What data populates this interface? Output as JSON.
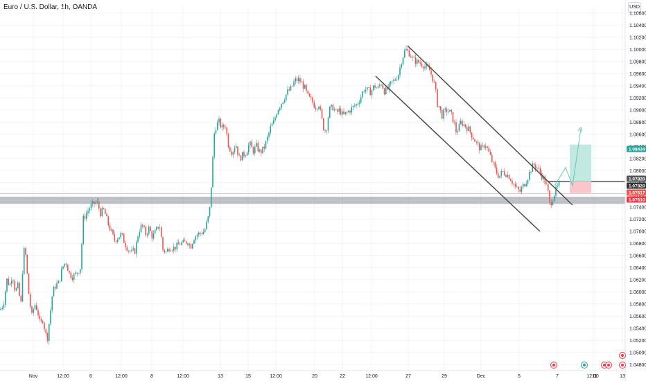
{
  "header": {
    "title": "Euro / U.S. Dollar, 1h, OANDA",
    "currency_button": "USD"
  },
  "colors": {
    "up": "#26a69a",
    "down": "#ef5350",
    "grid": "#f0f3fa",
    "support_zone": "#9598a1",
    "channel": "#4a4a4a",
    "target_zone": "#b7e4dd",
    "stop_zone": "#f9c0c3",
    "projection": "#66c8b6"
  },
  "chart_data": {
    "type": "candlestick",
    "symbol": "EURUSD",
    "timeframe": "1h",
    "ylim": [
      1.048,
      1.107
    ],
    "y_ticks": [
      "1.10600",
      "1.10400",
      "1.10200",
      "1.10000",
      "1.09800",
      "1.09600",
      "1.09400",
      "1.09200",
      "1.09000",
      "1.08800",
      "1.08600",
      "1.08400",
      "1.08200",
      "1.08000",
      "1.07800",
      "1.07600",
      "1.07400",
      "1.07200",
      "1.07000",
      "1.06800",
      "1.06600",
      "1.06400",
      "1.06200",
      "1.06000",
      "1.05800",
      "1.05600",
      "1.05400",
      "1.05200",
      "1.05000",
      "1.04800"
    ],
    "x_ticks": [
      "Nov",
      "12:00",
      "6",
      "12:00",
      "8",
      "12:00",
      "13",
      "15",
      "12:00",
      "20",
      "22",
      "12:00",
      "27",
      "29",
      "Dec",
      "5",
      "7",
      "11",
      "13",
      "12:00"
    ],
    "price_path": [
      [
        0,
        1.057
      ],
      [
        5,
        1.058
      ],
      [
        10,
        1.062
      ],
      [
        14,
        1.061
      ],
      [
        18,
        1.063
      ],
      [
        22,
        1.06
      ],
      [
        26,
        1.061
      ],
      [
        30,
        1.0575
      ],
      [
        34,
        1.067
      ],
      [
        37,
        1.066
      ],
      [
        42,
        1.059
      ],
      [
        46,
        1.056
      ],
      [
        50,
        1.058
      ],
      [
        54,
        1.057
      ],
      [
        58,
        1.0545
      ],
      [
        62,
        1.0555
      ],
      [
        65,
        1.0535
      ],
      [
        68,
        1.052
      ],
      [
        72,
        1.056
      ],
      [
        76,
        1.06
      ],
      [
        80,
        1.061
      ],
      [
        85,
        1.0615
      ],
      [
        90,
        1.064
      ],
      [
        95,
        1.065
      ],
      [
        100,
        1.063
      ],
      [
        105,
        1.0625
      ],
      [
        110,
        1.063
      ],
      [
        116,
        1.064
      ],
      [
        120,
        1.072
      ],
      [
        125,
        1.073
      ],
      [
        130,
        1.074
      ],
      [
        135,
        1.0745
      ],
      [
        140,
        1.0748
      ],
      [
        145,
        1.073
      ],
      [
        150,
        1.0735
      ],
      [
        155,
        1.0715
      ],
      [
        160,
        1.07
      ],
      [
        165,
        1.0685
      ],
      [
        170,
        1.069
      ],
      [
        175,
        1.0695
      ],
      [
        180,
        1.068
      ],
      [
        185,
        1.067
      ],
      [
        190,
        1.0665
      ],
      [
        195,
        1.0668
      ],
      [
        200,
        1.07
      ],
      [
        205,
        1.071
      ],
      [
        210,
        1.0695
      ],
      [
        215,
        1.0705
      ],
      [
        220,
        1.069
      ],
      [
        225,
        1.07
      ],
      [
        230,
        1.0712
      ],
      [
        235,
        1.067
      ],
      [
        240,
        1.0665
      ],
      [
        245,
        1.0675
      ],
      [
        250,
        1.0672
      ],
      [
        255,
        1.0675
      ],
      [
        260,
        1.068
      ],
      [
        265,
        1.068
      ],
      [
        270,
        1.0684
      ],
      [
        275,
        1.0675
      ],
      [
        280,
        1.069
      ],
      [
        285,
        1.0695
      ],
      [
        290,
        1.0697
      ],
      [
        295,
        1.07
      ],
      [
        300,
        1.072
      ],
      [
        303,
        1.074
      ],
      [
        306,
        1.08
      ],
      [
        309,
        1.086
      ],
      [
        312,
        1.0875
      ],
      [
        316,
        1.088
      ],
      [
        320,
        1.087
      ],
      [
        325,
        1.0875
      ],
      [
        330,
        1.084
      ],
      [
        335,
        1.083
      ],
      [
        340,
        1.0845
      ],
      [
        345,
        1.082
      ],
      [
        350,
        1.0825
      ],
      [
        355,
        1.083
      ],
      [
        360,
        1.0845
      ],
      [
        365,
        1.0832
      ],
      [
        370,
        1.084
      ],
      [
        375,
        1.083
      ],
      [
        380,
        1.0835
      ],
      [
        385,
        1.085
      ],
      [
        390,
        1.087
      ],
      [
        395,
        1.088
      ],
      [
        400,
        1.09
      ],
      [
        405,
        1.091
      ],
      [
        410,
        1.092
      ],
      [
        415,
        1.093
      ],
      [
        420,
        1.0935
      ],
      [
        425,
        1.0948
      ],
      [
        430,
        1.095
      ],
      [
        435,
        1.0945
      ],
      [
        440,
        1.0935
      ],
      [
        443,
        1.0925
      ],
      [
        445,
        1.092
      ],
      [
        450,
        1.0915
      ],
      [
        455,
        1.0905
      ],
      [
        460,
        1.091
      ],
      [
        465,
        1.088
      ],
      [
        468,
        1.0865
      ],
      [
        471,
        1.087
      ],
      [
        475,
        1.09
      ],
      [
        480,
        1.0905
      ],
      [
        485,
        1.0895
      ],
      [
        490,
        1.09
      ],
      [
        495,
        1.089
      ],
      [
        500,
        1.0895
      ],
      [
        505,
        1.09
      ],
      [
        510,
        1.0905
      ],
      [
        515,
        1.091
      ],
      [
        520,
        1.092
      ],
      [
        525,
        1.0935
      ],
      [
        530,
        1.0932
      ],
      [
        535,
        1.093
      ],
      [
        540,
        1.094
      ],
      [
        545,
        1.0935
      ],
      [
        550,
        1.0945
      ],
      [
        555,
        1.093
      ],
      [
        560,
        1.0935
      ],
      [
        565,
        1.0945
      ],
      [
        570,
        1.095
      ],
      [
        575,
        1.096
      ],
      [
        580,
        1.0985
      ],
      [
        585,
        1.1
      ],
      [
        590,
        1.0995
      ],
      [
        595,
        1.0985
      ],
      [
        600,
        1.098
      ],
      [
        605,
        1.0978
      ],
      [
        610,
        1.0975
      ],
      [
        615,
        1.097
      ],
      [
        620,
        1.0965
      ],
      [
        625,
        1.095
      ],
      [
        628,
        1.0935
      ],
      [
        631,
        1.091
      ],
      [
        634,
        1.0905
      ],
      [
        637,
        1.089
      ],
      [
        640,
        1.0895
      ],
      [
        645,
        1.09
      ],
      [
        650,
        1.0895
      ],
      [
        655,
        1.088
      ],
      [
        658,
        1.0865
      ],
      [
        662,
        1.087
      ],
      [
        665,
        1.088
      ],
      [
        670,
        1.0875
      ],
      [
        675,
        1.087
      ],
      [
        680,
        1.086
      ],
      [
        685,
        1.085
      ],
      [
        690,
        1.084
      ],
      [
        695,
        1.0835
      ],
      [
        700,
        1.0845
      ],
      [
        705,
        1.083
      ],
      [
        710,
        1.0815
      ],
      [
        715,
        1.08
      ],
      [
        720,
        1.079
      ],
      [
        725,
        1.0798
      ],
      [
        730,
        1.0795
      ],
      [
        735,
        1.079
      ],
      [
        740,
        1.078
      ],
      [
        745,
        1.077
      ],
      [
        750,
        1.0765
      ],
      [
        755,
        1.0775
      ],
      [
        760,
        1.0785
      ],
      [
        765,
        1.08
      ],
      [
        770,
        1.081
      ],
      [
        775,
        1.0805
      ],
      [
        780,
        1.0795
      ],
      [
        785,
        1.0785
      ],
      [
        790,
        1.077
      ],
      [
        793,
        1.0745
      ],
      [
        796,
        1.075
      ],
      [
        799,
        1.076
      ],
      [
        803,
        1.077
      ],
      [
        808,
        1.0778
      ]
    ],
    "support_zone": [
      1.0745,
      1.0757
    ],
    "resistance_line": 1.0782,
    "current_price_line": 1.0762,
    "channel_upper": [
      [
        25,
        1.101
      ],
      [
        112,
        1.0752
      ]
    ],
    "channel_lower": [
      [
        13,
        1.0965
      ],
      [
        100,
        1.0708
      ]
    ],
    "trade": {
      "entry": 1.0782,
      "target": 1.0843,
      "stop": 1.0763
    },
    "projection_path": [
      [
        12,
        1.0782
      ],
      [
        16,
        1.08
      ],
      [
        19,
        1.078
      ],
      [
        24,
        1.0878
      ]
    ],
    "price_tags": [
      {
        "label": "1.08434",
        "value": 1.0843,
        "color": "#26a69a"
      },
      {
        "label": "1.07820",
        "value": 1.0782,
        "color": "#555555"
      },
      {
        "label": "1.07820",
        "value": 1.0782,
        "color": "#333333"
      },
      {
        "label": "1.07617",
        "value": 1.0762,
        "color": "#ef5350"
      },
      {
        "label": "1.07610",
        "value": 1.0761,
        "color": "#f23645"
      }
    ]
  }
}
